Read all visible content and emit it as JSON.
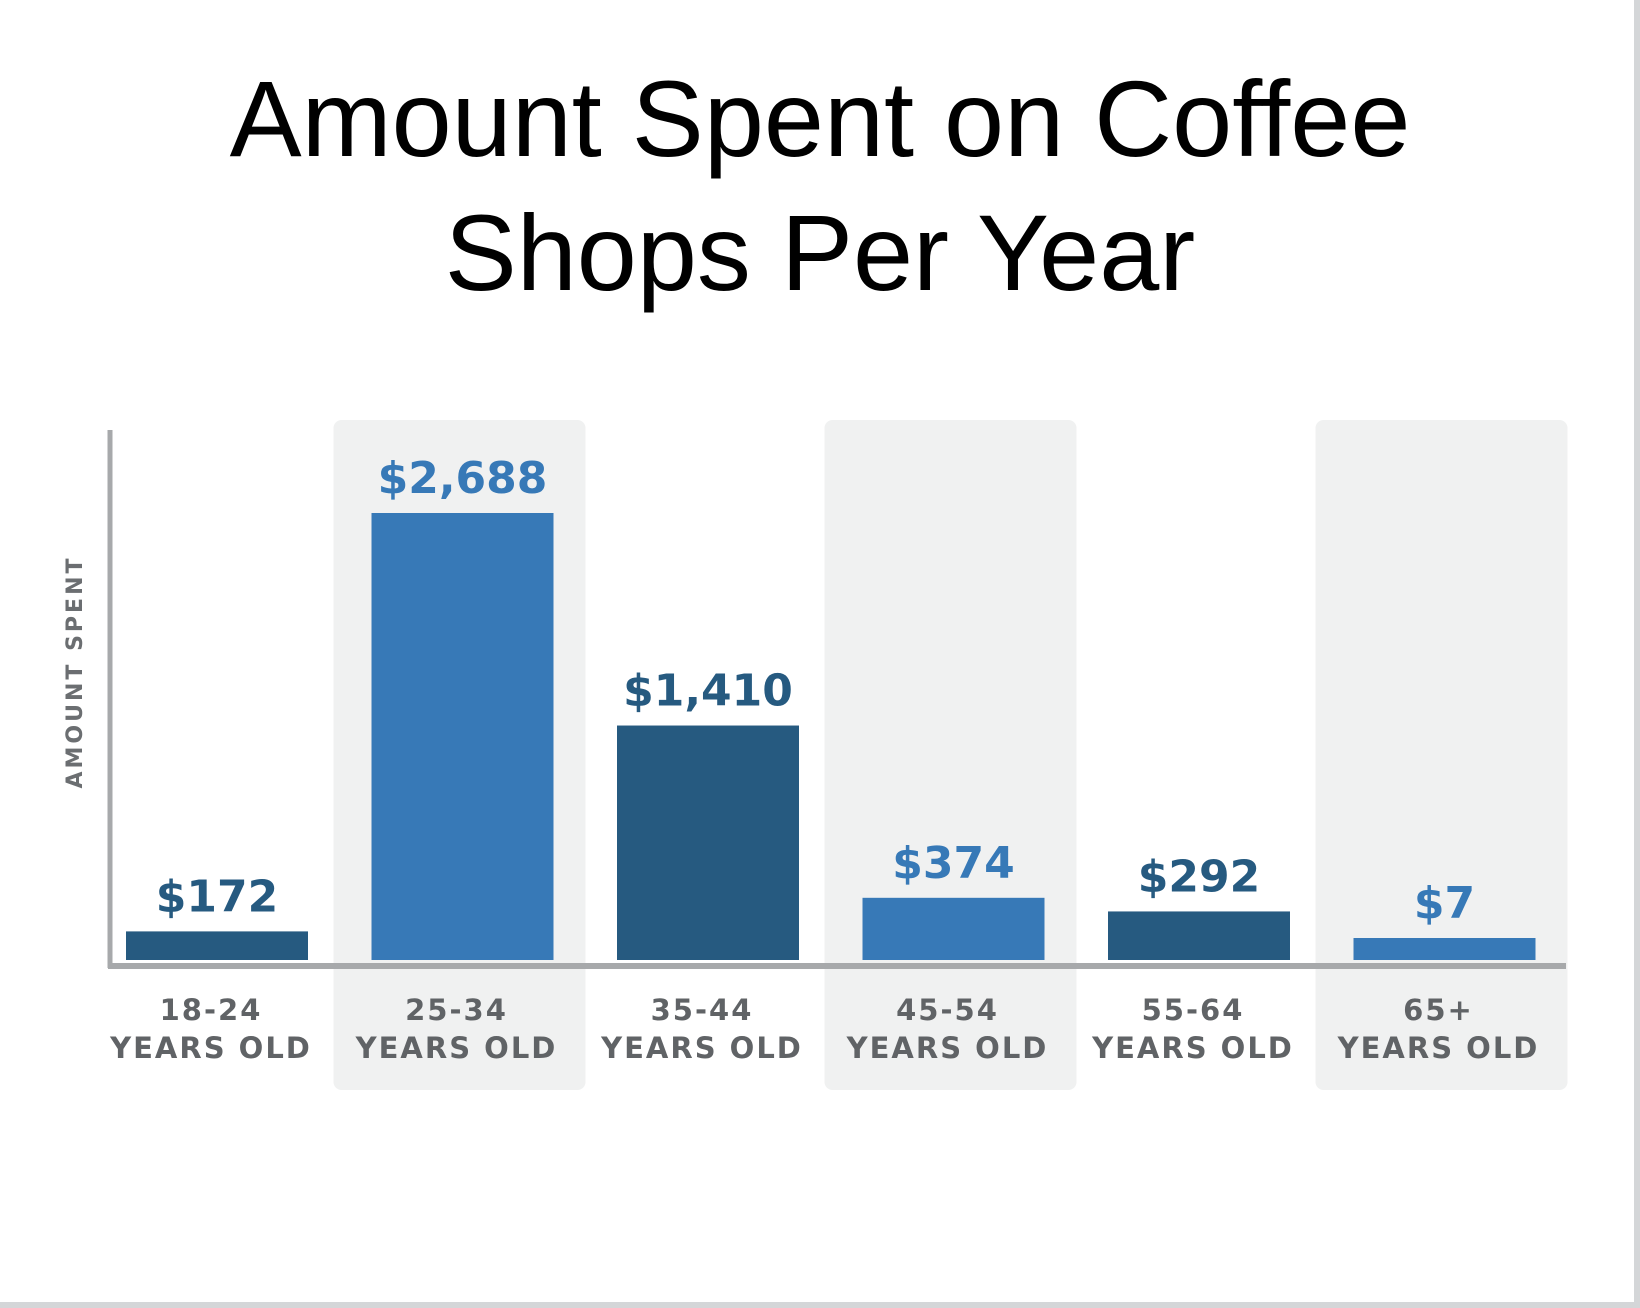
{
  "chart_data": {
    "type": "bar",
    "title_lines": [
      "Amount Spent on Coffee",
      "Shops Per Year"
    ],
    "ylabel": "AMOUNT SPENT",
    "categories": [
      [
        "18-24",
        "YEARS OLD"
      ],
      [
        "25-34",
        "YEARS OLD"
      ],
      [
        "35-44",
        "YEARS OLD"
      ],
      [
        "45-54",
        "YEARS OLD"
      ],
      [
        "55-64",
        "YEARS OLD"
      ],
      [
        "65+",
        "YEARS OLD"
      ]
    ],
    "values": [
      172,
      2688,
      1410,
      374,
      292,
      7
    ],
    "value_labels": [
      "$172",
      "$2,688",
      "$1,410",
      "$374",
      "$292",
      "$7"
    ],
    "bar_colors": [
      "#265a80",
      "#3779b7",
      "#265a80",
      "#3779b7",
      "#265a80",
      "#3779b7"
    ],
    "label_colors": [
      "#265a80",
      "#3779b7",
      "#265a80",
      "#3779b7",
      "#265a80",
      "#3779b7"
    ],
    "shaded_columns": [
      1,
      3,
      5
    ],
    "shade_color": "#f0f1f1",
    "axis_color": "#a7a9ab",
    "ylim": [
      0,
      2688
    ],
    "grid": false,
    "legend": "none"
  }
}
